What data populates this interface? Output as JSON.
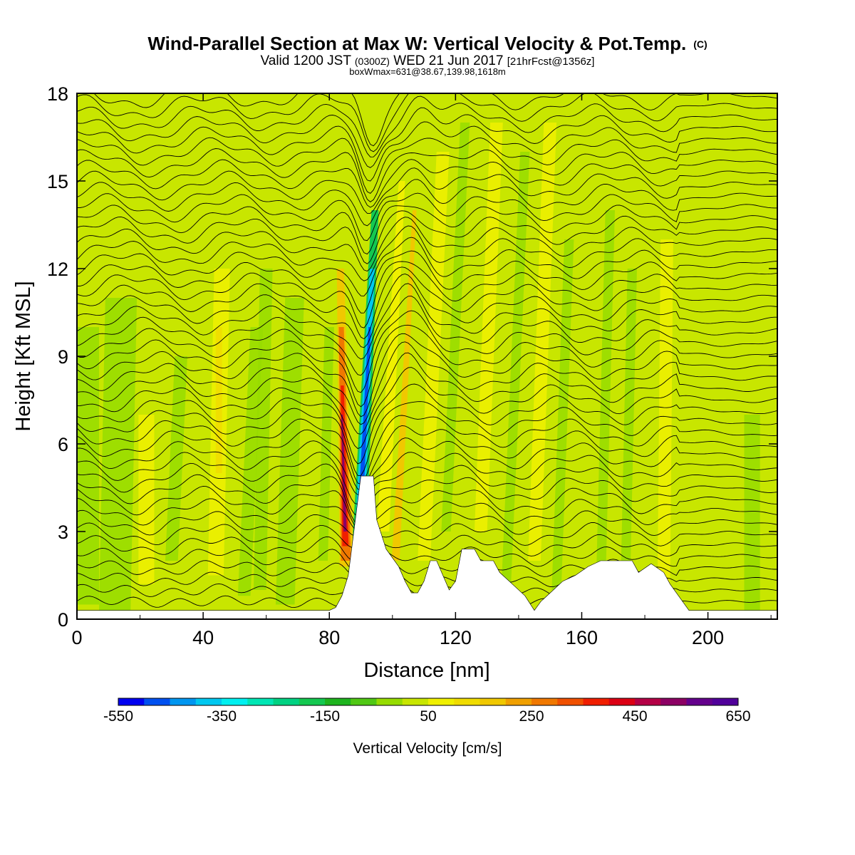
{
  "title": {
    "main": "Wind-Parallel Section at Max W: Vertical Velocity & Pot.Temp.",
    "copyright": "(C)",
    "valid_prefix": "Valid 1200 JST",
    "valid_z": "(0300Z)",
    "valid_date": "WED 21 Jun 2017",
    "fcst": "[21hrFcst@1356z]",
    "box": "boxWmax=631@38.67,139.98,1618m"
  },
  "chart_data": {
    "type": "heatmap",
    "xlabel": "Distance [nm]",
    "ylabel": "Height [Kft MSL]",
    "xlim": [
      0,
      222
    ],
    "ylim": [
      0,
      18
    ],
    "x_ticks": [
      "0",
      "40",
      "80",
      "120",
      "160",
      "200"
    ],
    "y_ticks": [
      "0",
      "3",
      "6",
      "9",
      "12",
      "15",
      "18"
    ],
    "grid": false,
    "colorbar": {
      "label": "Vertical Velocity [cm/s]",
      "min": -550,
      "max": 650,
      "step": 50,
      "tick_labels": [
        "-550",
        "-350",
        "-150",
        "50",
        "250",
        "450",
        "650"
      ],
      "colors": [
        "#0000f0",
        "#0050f0",
        "#0096f0",
        "#00c8f0",
        "#00f0f0",
        "#00e6b4",
        "#00d282",
        "#14c850",
        "#1eb41e",
        "#50c814",
        "#96dc00",
        "#c8e600",
        "#f0f000",
        "#f0dc00",
        "#f0c800",
        "#f0a000",
        "#f07800",
        "#f05000",
        "#f01e00",
        "#dc0014",
        "#b40046",
        "#8c0064",
        "#64008c",
        "#50009a"
      ]
    },
    "terrain_kft": [
      [
        0,
        0.3
      ],
      [
        80,
        0.3
      ],
      [
        82,
        0.4
      ],
      [
        84,
        0.8
      ],
      [
        86,
        1.5
      ],
      [
        88,
        3.2
      ],
      [
        90,
        4.9
      ],
      [
        94,
        4.9
      ],
      [
        95,
        3.4
      ],
      [
        98,
        2.4
      ],
      [
        102,
        1.8
      ],
      [
        104,
        1.3
      ],
      [
        106,
        0.9
      ],
      [
        108,
        0.9
      ],
      [
        110,
        1.3
      ],
      [
        112,
        2.0
      ],
      [
        114,
        2.0
      ],
      [
        116,
        1.5
      ],
      [
        118,
        1.0
      ],
      [
        120,
        1.3
      ],
      [
        122,
        2.4
      ],
      [
        126,
        2.4
      ],
      [
        128,
        2.0
      ],
      [
        132,
        2.0
      ],
      [
        134,
        1.6
      ],
      [
        138,
        1.2
      ],
      [
        142,
        0.8
      ],
      [
        145,
        0.3
      ],
      [
        147,
        0.6
      ],
      [
        150,
        0.9
      ],
      [
        154,
        1.3
      ],
      [
        158,
        1.5
      ],
      [
        162,
        1.8
      ],
      [
        166,
        2.0
      ],
      [
        170,
        2.0
      ],
      [
        176,
        2.0
      ],
      [
        178,
        1.6
      ],
      [
        182,
        1.9
      ],
      [
        186,
        1.6
      ],
      [
        188,
        1.2
      ],
      [
        192,
        0.6
      ],
      [
        194,
        0.3
      ],
      [
        222,
        0.3
      ]
    ]
  }
}
